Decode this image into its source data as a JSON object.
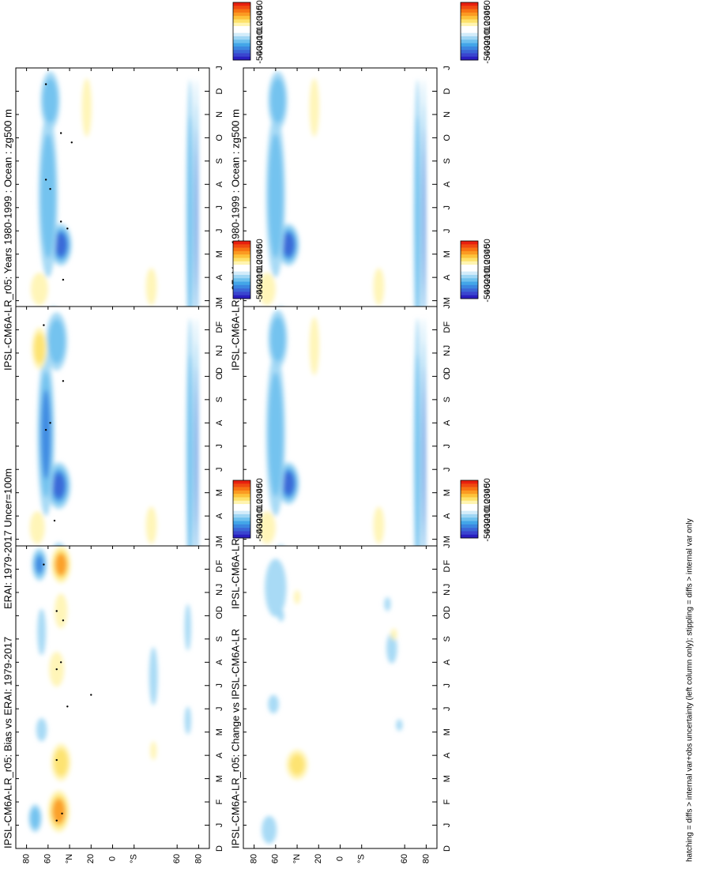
{
  "figure": {
    "footer": "hatching = diffs > internal var+obs uncertainty (left column only); stippling = diffs > internal var only"
  },
  "colorbar": {
    "labels": [
      "50",
      "40",
      "30",
      "20",
      "10",
      "0",
      "-10",
      "-20",
      "-30",
      "-40",
      "-50"
    ],
    "colors": [
      "#e8200f",
      "#f04a10",
      "#f77312",
      "#fb9a22",
      "#fdc23a",
      "#fde16b",
      "#fff4b0",
      "#ffffff",
      "#ffffff",
      "#d3ecfa",
      "#9fd6f4",
      "#6fc1ee",
      "#43a6e8",
      "#3b86e0",
      "#3a66d7",
      "#3a45cf",
      "#2a1fc0"
    ]
  },
  "axes": {
    "month_ticks": [
      "D",
      "J",
      "F",
      "M",
      "A",
      "M",
      "J",
      "J",
      "A",
      "S",
      "O",
      "N",
      "D",
      "J"
    ],
    "lat_ticks": [
      "80",
      "60",
      "°N",
      "20",
      "0",
      "°S",
      "60",
      "80"
    ]
  },
  "colors": {
    "frame": "#000000",
    "stipple": "#000000"
  },
  "chart_data": [
    {
      "type": "heatmap",
      "title": "IPSL-CM6A-LR_r05: Years 1980-1999 : Ocean : zg500 m",
      "x": "month",
      "y": "latitude",
      "zlim": [
        -50,
        50
      ],
      "features": [
        {
          "month": 5.4,
          "lat": 48,
          "value": -45,
          "month_span": 1.8,
          "lat_span": 20
        },
        {
          "month": 7.5,
          "lat": 60,
          "value": -28,
          "month_span": 7,
          "lat_span": 18
        },
        {
          "month": 1.5,
          "lat": 55,
          "value": -28,
          "month_span": 2.5,
          "lat_span": 18
        },
        {
          "month": 11.6,
          "lat": 58,
          "value": -28,
          "month_span": 2.5,
          "lat_span": 18
        },
        {
          "month": 6.5,
          "lat": -72,
          "value": -25,
          "month_span": 12,
          "lat_span": 7
        },
        {
          "month": 6.5,
          "lat": -78,
          "value": -42,
          "month_span": 12,
          "lat_span": 3
        },
        {
          "month": 3.5,
          "lat": 68,
          "value": 15,
          "month_span": 1.4,
          "lat_span": 16
        },
        {
          "month": 11.3,
          "lat": 24,
          "value": 12,
          "month_span": 2.5,
          "lat_span": 9
        },
        {
          "month": 3.6,
          "lat": -36,
          "value": 10,
          "month_span": 1.6,
          "lat_span": 10
        }
      ],
      "stipple": [
        [
          1.2,
          52
        ],
        [
          1.5,
          47
        ],
        [
          3.9,
          46
        ],
        [
          6.1,
          42
        ],
        [
          6.4,
          48
        ],
        [
          7.8,
          58
        ],
        [
          8.2,
          62
        ],
        [
          9.8,
          38
        ],
        [
          10.2,
          48
        ],
        [
          12.3,
          62
        ]
      ]
    },
    {
      "type": "heatmap",
      "title": "IPSL-CM6A-LR_r05: Years 1980-1999 : Ocean : zg500 m",
      "x": "month",
      "y": "latitude",
      "zlim": [
        -50,
        50
      ],
      "features": [
        {
          "month": 5.4,
          "lat": 48,
          "value": -45,
          "month_span": 1.8,
          "lat_span": 20
        },
        {
          "month": 7.5,
          "lat": 60,
          "value": -28,
          "month_span": 7,
          "lat_span": 18
        },
        {
          "month": 1.5,
          "lat": 55,
          "value": -28,
          "month_span": 2.5,
          "lat_span": 18
        },
        {
          "month": 11.6,
          "lat": 58,
          "value": -28,
          "month_span": 2.5,
          "lat_span": 18
        },
        {
          "month": 6.5,
          "lat": -72,
          "value": -25,
          "month_span": 12,
          "lat_span": 7
        },
        {
          "month": 6.5,
          "lat": -78,
          "value": -42,
          "month_span": 12,
          "lat_span": 3
        },
        {
          "month": 3.5,
          "lat": 68,
          "value": 15,
          "month_span": 1.4,
          "lat_span": 16
        },
        {
          "month": 11.3,
          "lat": 24,
          "value": 12,
          "month_span": 2.5,
          "lat_span": 9
        },
        {
          "month": 3.6,
          "lat": -36,
          "value": 10,
          "month_span": 1.6,
          "lat_span": 10
        }
      ],
      "stipple": []
    },
    {
      "type": "heatmap",
      "title": "ERAI: 1979-2017 Uncer=100m",
      "x": "month",
      "y": "latitude",
      "zlim": [
        -50,
        50
      ],
      "features": [
        {
          "month": 5.3,
          "lat": 50,
          "value": -42,
          "month_span": 2,
          "lat_span": 22
        },
        {
          "month": 7.5,
          "lat": 62,
          "value": -30,
          "month_span": 7,
          "lat_span": 16
        },
        {
          "month": 1.6,
          "lat": 50,
          "value": -28,
          "month_span": 2.5,
          "lat_span": 20
        },
        {
          "month": 11.5,
          "lat": 52,
          "value": -28,
          "month_span": 2.5,
          "lat_span": 20
        },
        {
          "month": 6.5,
          "lat": -72,
          "value": -25,
          "month_span": 12,
          "lat_span": 7
        },
        {
          "month": 6.5,
          "lat": -78,
          "value": -42,
          "month_span": 12,
          "lat_span": 3
        },
        {
          "month": 11.2,
          "lat": 68,
          "value": 25,
          "month_span": 1.8,
          "lat_span": 14
        },
        {
          "month": 3.5,
          "lat": 70,
          "value": 15,
          "month_span": 1.4,
          "lat_span": 14
        },
        {
          "month": 0.8,
          "lat": 24,
          "value": 12,
          "month_span": 1.5,
          "lat_span": 8
        },
        {
          "month": 3.6,
          "lat": -36,
          "value": 12,
          "month_span": 1.6,
          "lat_span": 10
        }
      ],
      "stipple": [
        [
          1.3,
          52
        ],
        [
          3.8,
          54
        ],
        [
          7.7,
          62
        ],
        [
          8.0,
          58
        ],
        [
          9.8,
          46
        ],
        [
          12.2,
          64
        ]
      ]
    },
    {
      "type": "heatmap",
      "title": "IPSL-CM6A-LR",
      "x": "month",
      "y": "latitude",
      "zlim": [
        -50,
        50
      ],
      "features": [
        {
          "month": 5.4,
          "lat": 48,
          "value": -45,
          "month_span": 1.8,
          "lat_span": 20
        },
        {
          "month": 7.5,
          "lat": 60,
          "value": -28,
          "month_span": 7,
          "lat_span": 18
        },
        {
          "month": 1.5,
          "lat": 55,
          "value": -28,
          "month_span": 2.5,
          "lat_span": 18
        },
        {
          "month": 11.6,
          "lat": 58,
          "value": -28,
          "month_span": 2.5,
          "lat_span": 18
        },
        {
          "month": 6.5,
          "lat": -72,
          "value": -25,
          "month_span": 12,
          "lat_span": 7
        },
        {
          "month": 6.5,
          "lat": -78,
          "value": -42,
          "month_span": 12,
          "lat_span": 3
        },
        {
          "month": 3.5,
          "lat": 68,
          "value": 15,
          "month_span": 1.4,
          "lat_span": 16
        },
        {
          "month": 11.3,
          "lat": 24,
          "value": 12,
          "month_span": 2.5,
          "lat_span": 9
        },
        {
          "month": 3.6,
          "lat": -36,
          "value": 10,
          "month_span": 1.6,
          "lat_span": 10
        }
      ],
      "stipple": []
    },
    {
      "type": "heatmap",
      "title": "IPSL-CM6A-LR_r05: Bias vs ERAI: 1979-2017",
      "x": "month",
      "y": "latitude",
      "zlim": [
        -50,
        50
      ],
      "features": [
        {
          "month": 1.6,
          "lat": 50,
          "value": 35,
          "month_span": 1.8,
          "lat_span": 20
        },
        {
          "month": 3.7,
          "lat": 48,
          "value": 25,
          "month_span": 1.6,
          "lat_span": 18
        },
        {
          "month": 12.2,
          "lat": 48,
          "value": 35,
          "month_span": 1.6,
          "lat_span": 18
        },
        {
          "month": 7.7,
          "lat": 52,
          "value": 12,
          "month_span": 1.5,
          "lat_span": 14
        },
        {
          "month": 10.2,
          "lat": 48,
          "value": 12,
          "month_span": 1.5,
          "lat_span": 12
        },
        {
          "month": 1.3,
          "lat": 72,
          "value": -25,
          "month_span": 1.2,
          "lat_span": 12
        },
        {
          "month": 12.2,
          "lat": 68,
          "value": -30,
          "month_span": 1.4,
          "lat_span": 14
        },
        {
          "month": 5.1,
          "lat": 66,
          "value": -15,
          "month_span": 1,
          "lat_span": 10
        },
        {
          "month": 9.3,
          "lat": 66,
          "value": -12,
          "month_span": 2,
          "lat_span": 8
        },
        {
          "month": 7.4,
          "lat": -38,
          "value": -12,
          "month_span": 2.5,
          "lat_span": 8
        },
        {
          "month": 5.5,
          "lat": -70,
          "value": -15,
          "month_span": 1.2,
          "lat_span": 6
        },
        {
          "month": 9.5,
          "lat": -70,
          "value": -12,
          "month_span": 2,
          "lat_span": 6
        },
        {
          "month": 4.2,
          "lat": -38,
          "value": 10,
          "month_span": 0.8,
          "lat_span": 6
        }
      ],
      "stipple": [
        [
          1.2,
          52
        ],
        [
          1.5,
          47
        ],
        [
          3.8,
          52
        ],
        [
          6.1,
          42
        ],
        [
          6.6,
          20
        ],
        [
          7.7,
          52
        ],
        [
          8.0,
          48
        ],
        [
          9.8,
          46
        ],
        [
          10.2,
          52
        ],
        [
          12.2,
          64
        ]
      ]
    },
    {
      "type": "heatmap",
      "title": "IPSL-CM6A-LR_r05: Change vs IPSL-CM6A-LR",
      "x": "month",
      "y": "latitude",
      "zlim": [
        -50,
        50
      ],
      "features": [
        {
          "month": 3.6,
          "lat": 40,
          "value": 20,
          "month_span": 1.3,
          "lat_span": 20
        },
        {
          "month": 0.8,
          "lat": 66,
          "value": -12,
          "month_span": 1.2,
          "lat_span": 14
        },
        {
          "month": 11.2,
          "lat": 60,
          "value": -12,
          "month_span": 2.5,
          "lat_span": 20
        },
        {
          "month": 6.2,
          "lat": 62,
          "value": -15,
          "month_span": 0.8,
          "lat_span": 10
        },
        {
          "month": 8.6,
          "lat": -48,
          "value": -12,
          "month_span": 1.3,
          "lat_span": 10
        },
        {
          "month": 10.5,
          "lat": -44,
          "value": -10,
          "month_span": 0.6,
          "lat_span": 6
        },
        {
          "month": 10.8,
          "lat": 40,
          "value": 10,
          "month_span": 0.6,
          "lat_span": 6
        },
        {
          "month": 9.2,
          "lat": -50,
          "value": 10,
          "month_span": 0.5,
          "lat_span": 6
        },
        {
          "month": 10.0,
          "lat": 55,
          "value": -10,
          "month_span": 0.5,
          "lat_span": 6
        },
        {
          "month": 5.3,
          "lat": -55,
          "value": -10,
          "month_span": 0.5,
          "lat_span": 6
        }
      ],
      "stipple": []
    }
  ]
}
